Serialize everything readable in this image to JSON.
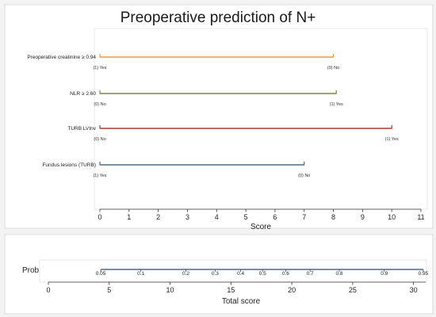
{
  "chart_data": [
    {
      "type": "nomogram",
      "title": "Preoperative prediction of N+",
      "xlabel": "Score",
      "xlim": [
        0,
        11
      ],
      "xticks": [
        0,
        1,
        2,
        3,
        4,
        5,
        6,
        7,
        8,
        9,
        10,
        11
      ],
      "grid": false,
      "variables": [
        {
          "name": "Preoperative creatinine ≥ 0.94",
          "color": "#e89a4a",
          "range": [
            0,
            8
          ],
          "points": [
            {
              "label": "(1) Yes",
              "score": 0
            },
            {
              "label": "(0) No",
              "score": 8
            }
          ]
        },
        {
          "name": "NLR ≥ 2.60",
          "color": "#7a8a3c",
          "range": [
            0,
            8.1
          ],
          "points": [
            {
              "label": "(0) No",
              "score": 0
            },
            {
              "label": "(1) Yes",
              "score": 8.1
            }
          ]
        },
        {
          "name": "TURB LVInv",
          "color": "#a83c30",
          "range": [
            0,
            10
          ],
          "points": [
            {
              "label": "(0) No",
              "score": 0
            },
            {
              "label": "(1) Yes",
              "score": 10
            }
          ]
        },
        {
          "name": "Fundus lesions (TURB)",
          "color": "#4a6890",
          "range": [
            0,
            7
          ],
          "points": [
            {
              "label": "(1) Yes",
              "score": 0
            },
            {
              "label": "(0) No",
              "score": 7
            }
          ]
        }
      ]
    },
    {
      "type": "nomogram-scale",
      "xlabel": "Total score",
      "xlim": [
        0,
        31
      ],
      "xticks": [
        0,
        5,
        10,
        15,
        20,
        25,
        30
      ],
      "prob_label": "Prob",
      "line_color": "#4a6890",
      "prob_range": [
        4.3,
        30.8
      ],
      "prob_ticks": [
        {
          "label": "0.05",
          "total": 4.3
        },
        {
          "label": "0.1",
          "total": 7.6
        },
        {
          "label": "0.2",
          "total": 11.3
        },
        {
          "label": "0.3",
          "total": 13.7
        },
        {
          "label": "0.4",
          "total": 15.8
        },
        {
          "label": "0.5",
          "total": 17.6
        },
        {
          "label": "0.6",
          "total": 19.5
        },
        {
          "label": "0.7",
          "total": 21.5
        },
        {
          "label": "0.8",
          "total": 23.9
        },
        {
          "label": "0.9",
          "total": 27.6
        },
        {
          "label": "0.95",
          "total": 30.8
        }
      ]
    }
  ]
}
